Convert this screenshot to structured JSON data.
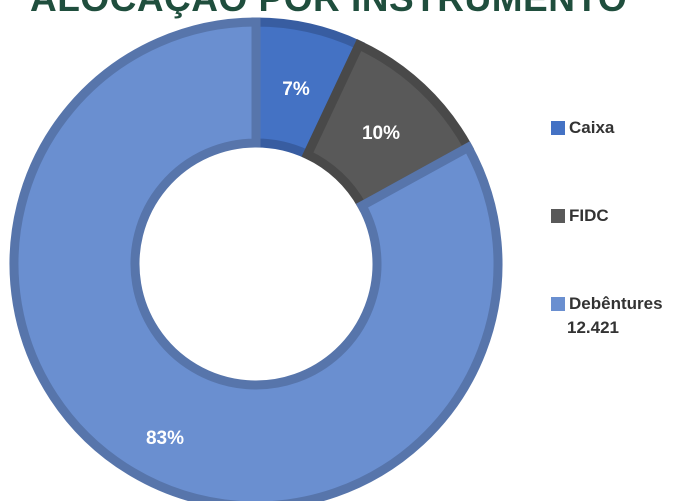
{
  "chart_data": {
    "type": "pie",
    "title": "ALOCAÇÃO POR INSTRUMENTO",
    "donut": true,
    "legend_position": "right",
    "slices": [
      {
        "name": "Caixa",
        "value": 7,
        "label": "7%",
        "color": "#4472c4"
      },
      {
        "name": "FIDC",
        "value": 10,
        "label": "10%",
        "color": "#595959"
      },
      {
        "name": "Debêntures",
        "value": 83,
        "label": "83%",
        "color": "#6a8fd0",
        "legend_sub": "12.421"
      }
    ]
  }
}
